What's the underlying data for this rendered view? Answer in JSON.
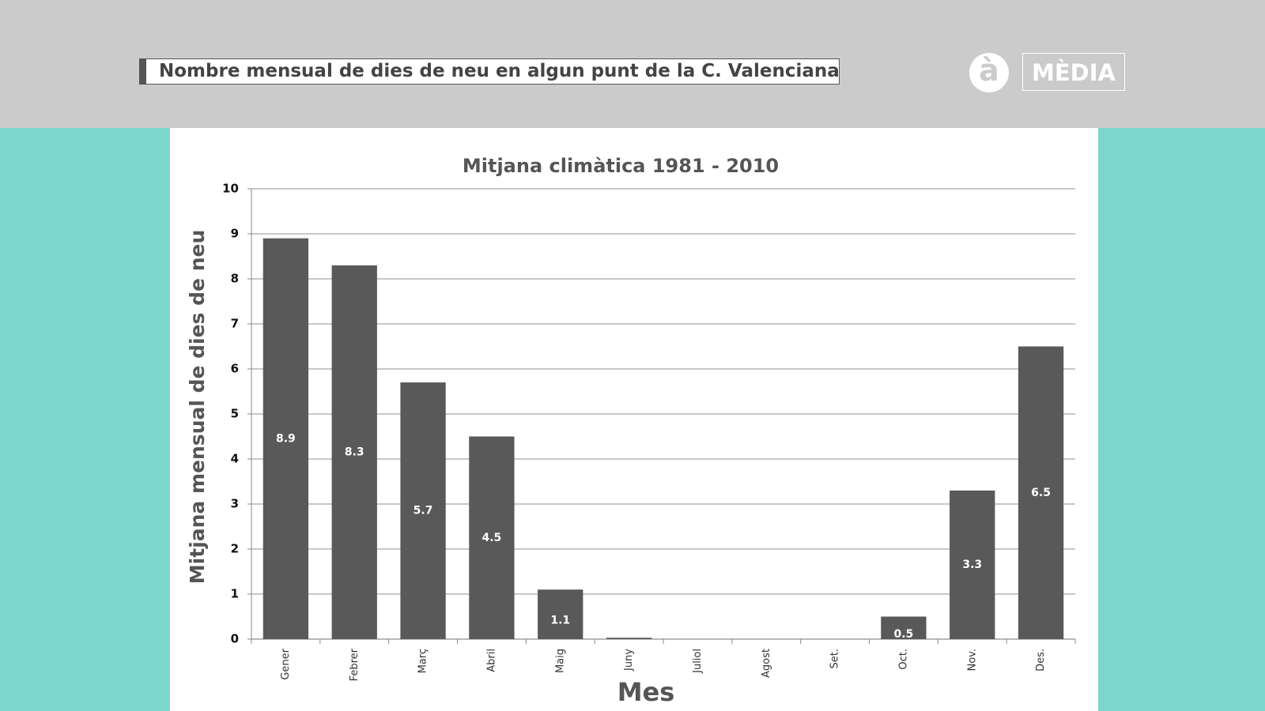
{
  "header": {
    "title": "Nombre mensual de dies de neu en algun punt de la C. Valenciana",
    "logo_mark": "à",
    "logo_text": "MÈDIA"
  },
  "chart_data": {
    "type": "bar",
    "title": "Mitjana climàtica 1981 - 2010",
    "x_label": "Mes",
    "y_label": "Mitjana mensual de dies de neu",
    "categories": [
      "Gener",
      "Febrer",
      "Març",
      "Abril",
      "Maig",
      "Juny",
      "Juliol",
      "Agost",
      "Set.",
      "Oct.",
      "Nov.",
      "Des."
    ],
    "values": [
      8.9,
      8.3,
      5.7,
      4.5,
      1.1,
      0.03,
      0,
      0,
      0,
      0.5,
      3.3,
      6.5
    ],
    "value_labels": [
      "8.9",
      "8.3",
      "5.7",
      "4.5",
      "1.1",
      null,
      null,
      null,
      null,
      "0.5",
      "3.3",
      "6.5"
    ],
    "color": "#595959",
    "ylim": [
      0,
      10
    ],
    "yticks": [
      0,
      1,
      2,
      3,
      4,
      5,
      6,
      7,
      8,
      9,
      10
    ],
    "grid": true
  }
}
